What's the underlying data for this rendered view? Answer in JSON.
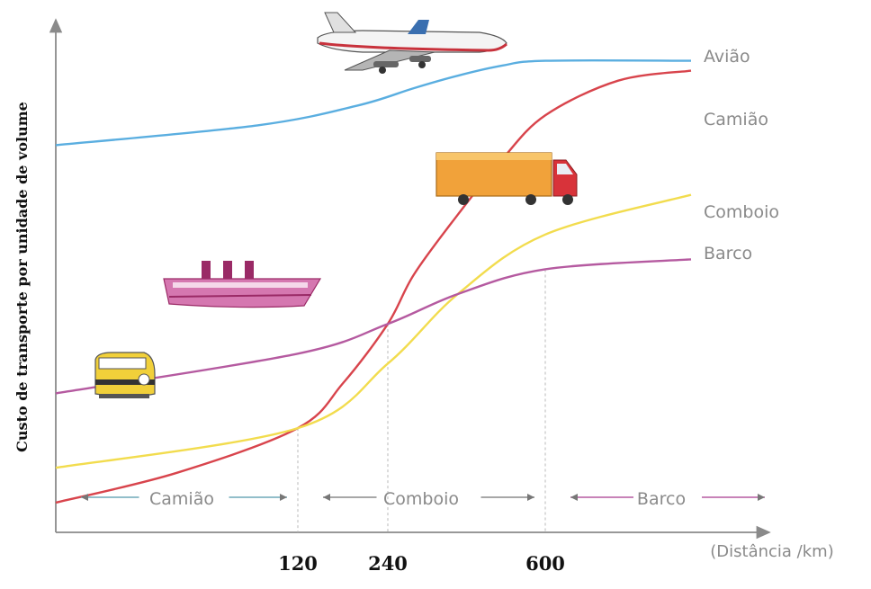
{
  "chart_data": {
    "type": "line",
    "xlabel": "(Distância /km)",
    "ylabel": "Custo de transporte por unidade de volume",
    "x_ticks": [
      "120",
      "240",
      "600"
    ],
    "series": [
      {
        "name": "Avião",
        "color": "#5aaee0",
        "points": [
          [
            0,
            78
          ],
          [
            100,
            82
          ],
          [
            200,
            86
          ],
          [
            300,
            89.5
          ],
          [
            400,
            92
          ],
          [
            500,
            94
          ],
          [
            600,
            95
          ],
          [
            800,
            95
          ]
        ]
      },
      {
        "name": "Camião",
        "color": "#d8444c",
        "points": [
          [
            0,
            6
          ],
          [
            60,
            12
          ],
          [
            120,
            21
          ],
          [
            180,
            30
          ],
          [
            240,
            42
          ],
          [
            300,
            52
          ],
          [
            400,
            64
          ],
          [
            500,
            75
          ],
          [
            600,
            84
          ],
          [
            700,
            91
          ],
          [
            800,
            93
          ]
        ]
      },
      {
        "name": "Comboio",
        "color": "#f2dc4e",
        "points": [
          [
            0,
            13
          ],
          [
            120,
            21
          ],
          [
            240,
            34
          ],
          [
            400,
            48
          ],
          [
            600,
            60
          ],
          [
            800,
            68
          ]
        ]
      },
      {
        "name": "Barco",
        "color": "#b55aa0",
        "points": [
          [
            0,
            28
          ],
          [
            120,
            36
          ],
          [
            240,
            42
          ],
          [
            400,
            48
          ],
          [
            600,
            53
          ],
          [
            800,
            55
          ]
        ]
      }
    ],
    "zones": [
      {
        "label": "Camião",
        "from": 0,
        "to": 120,
        "color": "#6fa9b8"
      },
      {
        "label": "Comboio",
        "from": 120,
        "to": 600,
        "color": "#8a8a8a"
      },
      {
        "label": "Barco",
        "from": 600,
        "to": 800,
        "color": "#b55aa0"
      }
    ],
    "crossovers": [
      120,
      240,
      600
    ],
    "xlim": [
      0,
      800
    ],
    "ylim": [
      0,
      100
    ],
    "grid": false,
    "legend": "inline-right"
  },
  "illustrations": {
    "plane": "airplane-icon",
    "truck": "truck-icon",
    "ship": "ship-icon",
    "train": "train-icon"
  }
}
